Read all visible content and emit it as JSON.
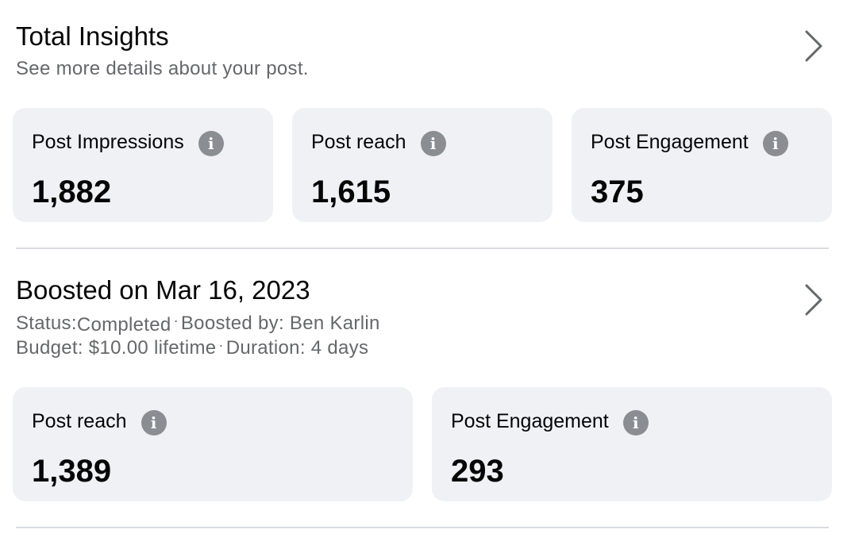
{
  "total_insights": {
    "title": "Total Insights",
    "subtitle": "See more details about your post.",
    "cards": [
      {
        "label": "Post Impressions",
        "value": "1,882"
      },
      {
        "label": "Post reach",
        "value": "1,615"
      },
      {
        "label": "Post Engagement",
        "value": "375"
      }
    ]
  },
  "boost": {
    "title": "Boosted on Mar 16, 2023",
    "status_label": "Status:",
    "status_value": "Completed",
    "separator": "·",
    "boosted_by": "Boosted by: Ben Karlin",
    "budget": "Budget: $10.00 lifetime",
    "duration": "Duration: 4 days",
    "cards": [
      {
        "label": "Post reach",
        "value": "1,389"
      },
      {
        "label": "Post Engagement",
        "value": "293"
      }
    ]
  },
  "icons": {
    "info": "info-icon",
    "chevron": "chevron-right-icon"
  },
  "colors": {
    "card_bg": "#f0f1f5",
    "secondary_text": "#65676b",
    "info_icon": "#8a8d91",
    "divider": "#dadde1"
  }
}
